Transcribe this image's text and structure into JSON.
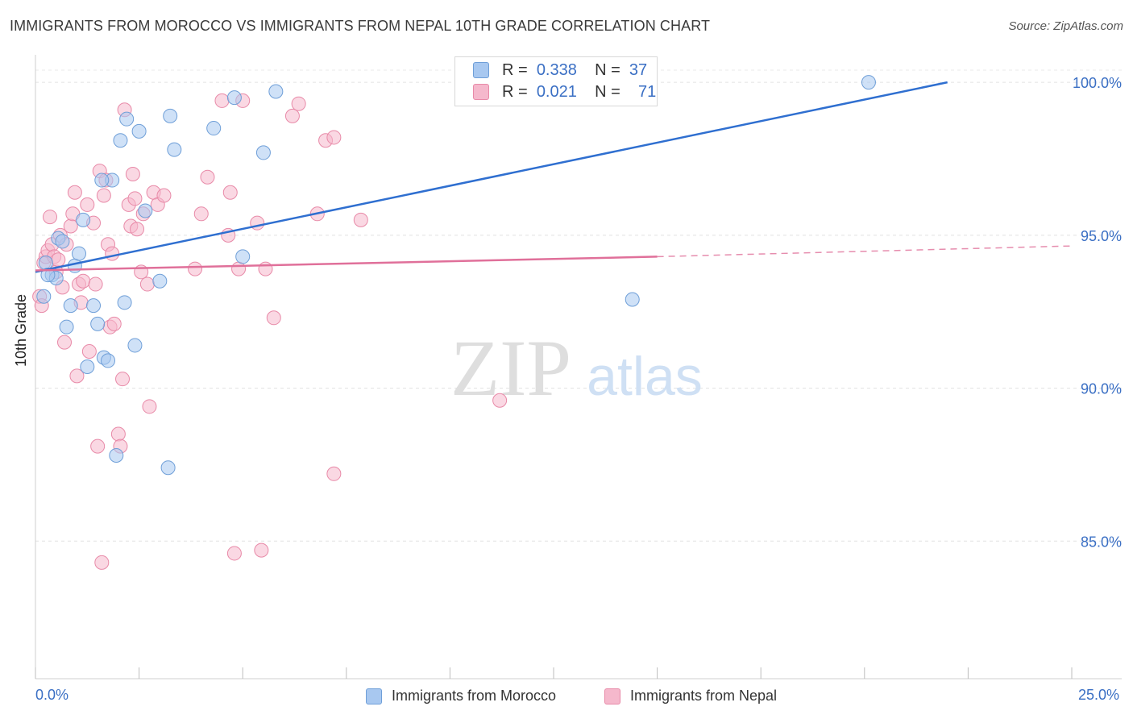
{
  "header": {
    "title": "IMMIGRANTS FROM MOROCCO VS IMMIGRANTS FROM NEPAL 10TH GRADE CORRELATION CHART",
    "source": "Source: ZipAtlas.com"
  },
  "watermark": {
    "zip": "ZIP",
    "atlas": "atlas"
  },
  "legend_top": {
    "rows": [
      {
        "r_label": "R =",
        "r_value": "0.338",
        "n_label": "N =",
        "n_value": "37",
        "color": "#a8c8f0"
      },
      {
        "r_label": "R =",
        "r_value": "0.021",
        "n_label": "N =",
        "n_value": "71",
        "color": "#f5b8cc"
      }
    ]
  },
  "legend_bottom": {
    "items": [
      {
        "label": "Immigrants from Morocco",
        "color": "#a8c8f0"
      },
      {
        "label": "Immigrants from Nepal",
        "color": "#f5b8cc"
      }
    ]
  },
  "colors": {
    "morocco_fill": "#a8c8f0",
    "morocco_stroke": "#6f9fd8",
    "morocco_line": "#2f6fd0",
    "nepal_fill": "#f5b8cc",
    "nepal_stroke": "#e88aa8",
    "nepal_line": "#e0709a",
    "tick_label": "#3a6fc4"
  },
  "chart_data": {
    "type": "scatter",
    "title": "IMMIGRANTS FROM MOROCCO VS IMMIGRANTS FROM NEPAL 10TH GRADE CORRELATION CHART",
    "xlabel": "",
    "ylabel": "10th Grade",
    "xlim": [
      0,
      25
    ],
    "ylim": [
      80.5,
      100.9
    ],
    "x_tick_labels": [
      "0.0%",
      "25.0%"
    ],
    "y_ticks": [
      85,
      90,
      95,
      100
    ],
    "y_tick_labels": [
      "85.0%",
      "90.0%",
      "95.0%",
      "100.0%"
    ],
    "grid": true,
    "series": [
      {
        "name": "Immigrants from Morocco",
        "R": 0.338,
        "N": 37,
        "points": [
          [
            0.2,
            93.0
          ],
          [
            0.25,
            94.1
          ],
          [
            0.4,
            93.7
          ],
          [
            0.5,
            93.6
          ],
          [
            0.55,
            94.9
          ],
          [
            0.65,
            94.8
          ],
          [
            0.75,
            92.0
          ],
          [
            0.85,
            92.7
          ],
          [
            0.95,
            94.0
          ],
          [
            1.05,
            94.4
          ],
          [
            1.15,
            95.5
          ],
          [
            1.25,
            90.7
          ],
          [
            1.4,
            92.7
          ],
          [
            1.5,
            92.1
          ],
          [
            1.65,
            91.0
          ],
          [
            1.75,
            90.9
          ],
          [
            1.85,
            96.8
          ],
          [
            1.95,
            87.8
          ],
          [
            2.05,
            98.1
          ],
          [
            2.15,
            92.8
          ],
          [
            2.2,
            98.8
          ],
          [
            2.4,
            91.4
          ],
          [
            2.5,
            98.4
          ],
          [
            2.65,
            95.8
          ],
          [
            3.0,
            93.5
          ],
          [
            3.2,
            87.4
          ],
          [
            3.25,
            98.9
          ],
          [
            3.35,
            97.8
          ],
          [
            4.3,
            98.5
          ],
          [
            4.8,
            99.5
          ],
          [
            5.0,
            94.3
          ],
          [
            5.5,
            97.7
          ],
          [
            5.8,
            99.7
          ],
          [
            14.4,
            92.9
          ],
          [
            20.1,
            100.0
          ],
          [
            0.3,
            93.7
          ],
          [
            1.6,
            96.8
          ]
        ],
        "trend": {
          "x": [
            0,
            22.0
          ],
          "y": [
            93.8,
            100.0
          ]
        }
      },
      {
        "name": "Immigrants from Nepal",
        "R": 0.021,
        "N": 71,
        "points": [
          [
            0.1,
            93.0
          ],
          [
            0.15,
            92.7
          ],
          [
            0.2,
            94.1
          ],
          [
            0.25,
            94.3
          ],
          [
            0.3,
            94.5
          ],
          [
            0.35,
            95.6
          ],
          [
            0.4,
            94.7
          ],
          [
            0.45,
            94.3
          ],
          [
            0.5,
            93.8
          ],
          [
            0.55,
            94.2
          ],
          [
            0.6,
            95.0
          ],
          [
            0.65,
            93.3
          ],
          [
            0.7,
            91.5
          ],
          [
            0.75,
            94.7
          ],
          [
            0.85,
            95.3
          ],
          [
            0.9,
            95.7
          ],
          [
            0.95,
            96.4
          ],
          [
            1.0,
            90.4
          ],
          [
            1.05,
            93.4
          ],
          [
            1.1,
            92.8
          ],
          [
            1.15,
            93.5
          ],
          [
            1.25,
            96.0
          ],
          [
            1.3,
            91.2
          ],
          [
            1.4,
            95.4
          ],
          [
            1.45,
            93.4
          ],
          [
            1.5,
            88.1
          ],
          [
            1.55,
            97.1
          ],
          [
            1.6,
            84.3
          ],
          [
            1.65,
            96.3
          ],
          [
            1.7,
            96.8
          ],
          [
            1.75,
            94.7
          ],
          [
            1.8,
            92.0
          ],
          [
            1.85,
            94.4
          ],
          [
            1.9,
            92.1
          ],
          [
            2.0,
            88.5
          ],
          [
            2.05,
            88.1
          ],
          [
            2.1,
            90.3
          ],
          [
            2.15,
            99.1
          ],
          [
            2.25,
            96.0
          ],
          [
            2.3,
            95.3
          ],
          [
            2.35,
            97.0
          ],
          [
            2.4,
            96.2
          ],
          [
            2.45,
            95.2
          ],
          [
            2.55,
            93.8
          ],
          [
            2.6,
            95.7
          ],
          [
            2.7,
            93.4
          ],
          [
            2.75,
            89.4
          ],
          [
            2.85,
            96.4
          ],
          [
            2.95,
            96.0
          ],
          [
            3.1,
            96.3
          ],
          [
            3.85,
            93.9
          ],
          [
            4.0,
            95.7
          ],
          [
            4.15,
            96.9
          ],
          [
            4.5,
            99.4
          ],
          [
            4.65,
            95.0
          ],
          [
            4.7,
            96.4
          ],
          [
            4.8,
            84.6
          ],
          [
            4.9,
            93.9
          ],
          [
            5.0,
            99.4
          ],
          [
            5.35,
            95.4
          ],
          [
            5.45,
            84.7
          ],
          [
            5.55,
            93.9
          ],
          [
            5.75,
            92.3
          ],
          [
            6.2,
            98.9
          ],
          [
            6.35,
            99.3
          ],
          [
            6.8,
            95.7
          ],
          [
            7.0,
            98.1
          ],
          [
            7.2,
            98.2
          ],
          [
            7.2,
            87.2
          ],
          [
            7.85,
            95.5
          ],
          [
            11.2,
            89.6
          ]
        ],
        "trend": {
          "x": [
            0,
            15.0
          ],
          "y": [
            93.85,
            94.3
          ]
        },
        "trend_extension": {
          "x": [
            15.0,
            25.0
          ],
          "y": [
            94.3,
            94.65
          ]
        }
      }
    ]
  }
}
